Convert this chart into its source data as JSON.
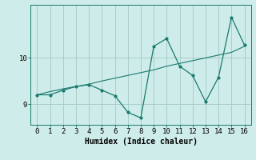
{
  "x": [
    0,
    1,
    2,
    3,
    4,
    5,
    6,
    7,
    8,
    9,
    10,
    11,
    12,
    13,
    14,
    15,
    16
  ],
  "y_jagged": [
    9.2,
    9.2,
    9.3,
    9.38,
    9.42,
    9.3,
    9.18,
    8.82,
    8.7,
    10.25,
    10.42,
    9.82,
    9.62,
    9.05,
    9.58,
    10.88,
    10.28
  ],
  "y_trend": [
    9.2,
    9.27,
    9.33,
    9.38,
    9.43,
    9.5,
    9.56,
    9.62,
    9.68,
    9.74,
    9.82,
    9.88,
    9.94,
    10.0,
    10.06,
    10.12,
    10.25
  ],
  "line_color": "#1a7a6e",
  "bg_color": "#ceecea",
  "grid_color": "#a8cec9",
  "xlabel": "Humidex (Indice chaleur)",
  "yticks": [
    9,
    10
  ],
  "xticks": [
    0,
    1,
    2,
    3,
    4,
    5,
    6,
    7,
    8,
    9,
    10,
    11,
    12,
    13,
    14,
    15,
    16
  ],
  "ylim": [
    8.55,
    11.15
  ],
  "xlim": [
    -0.5,
    16.5
  ]
}
